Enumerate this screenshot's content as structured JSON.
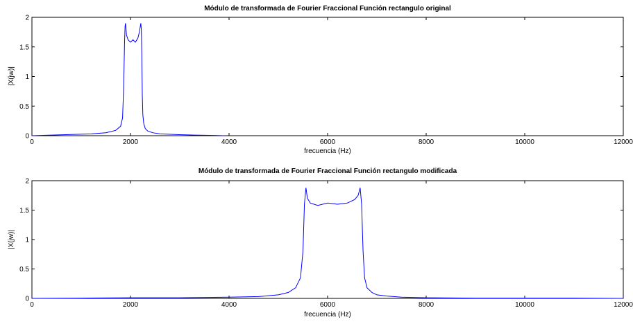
{
  "figure": {
    "background": "#ffffff"
  },
  "chart_data": [
    {
      "type": "line",
      "title": "Módulo de transformada de Fourier Fraccional Función rectangulo original",
      "xlabel": "frecuencia (Hz)",
      "ylabel": "|X(jw)|",
      "xlim": [
        0,
        12000
      ],
      "ylim": [
        0,
        2
      ],
      "xticks": [
        0,
        2000,
        4000,
        6000,
        8000,
        10000,
        12000
      ],
      "xtick_labels": [
        "0",
        "2000",
        "4000",
        "6000",
        "8000",
        "10000",
        "12000"
      ],
      "yticks": [
        0,
        0.5,
        1,
        1.5,
        2
      ],
      "ytick_labels": [
        "0",
        "0.5",
        "1",
        "1.5",
        "2"
      ],
      "grid": false,
      "color": "#0000ff",
      "series": [
        {
          "name": "",
          "x": [
            0,
            400,
            800,
            1200,
            1500,
            1700,
            1800,
            1840,
            1860,
            1880,
            1890,
            1900,
            1920,
            1950,
            2000,
            2050,
            2100,
            2150,
            2180,
            2200,
            2210,
            2220,
            2230,
            2240,
            2250,
            2270,
            2300,
            2350,
            2450,
            2600,
            2900,
            3300,
            3700,
            3900
          ],
          "y": [
            0.0,
            0.01,
            0.02,
            0.03,
            0.05,
            0.09,
            0.16,
            0.3,
            0.8,
            1.6,
            1.85,
            1.9,
            1.7,
            1.62,
            1.58,
            1.62,
            1.58,
            1.65,
            1.75,
            1.85,
            1.9,
            1.8,
            1.4,
            0.7,
            0.35,
            0.2,
            0.12,
            0.08,
            0.05,
            0.03,
            0.02,
            0.01,
            0.005,
            0.0
          ]
        }
      ]
    },
    {
      "type": "line",
      "title": "Módulo de transformada de Fourier Fraccional Función rectangulo modificada",
      "xlabel": "frecuencia (Hz)",
      "ylabel": "|X(jw)|",
      "xlim": [
        0,
        12000
      ],
      "ylim": [
        0,
        2
      ],
      "xticks": [
        0,
        2000,
        4000,
        6000,
        8000,
        10000,
        12000
      ],
      "xtick_labels": [
        "0",
        "2000",
        "4000",
        "6000",
        "8000",
        "10000",
        "12000"
      ],
      "yticks": [
        0,
        0.5,
        1,
        1.5,
        2
      ],
      "ytick_labels": [
        "0",
        "0.5",
        "1",
        "1.5",
        "2"
      ],
      "grid": false,
      "color": "#0000ff",
      "series": [
        {
          "name": "",
          "x": [
            0,
            1000,
            2000,
            3000,
            4000,
            4600,
            5000,
            5200,
            5350,
            5450,
            5500,
            5530,
            5560,
            5590,
            5650,
            5800,
            6000,
            6200,
            6400,
            6550,
            6620,
            6660,
            6690,
            6720,
            6750,
            6800,
            6900,
            7000,
            7200,
            7500,
            8000,
            9000,
            10000,
            11000,
            12000
          ],
          "y": [
            0.0,
            0.005,
            0.01,
            0.01,
            0.02,
            0.03,
            0.06,
            0.1,
            0.18,
            0.35,
            0.8,
            1.6,
            1.88,
            1.7,
            1.62,
            1.58,
            1.62,
            1.6,
            1.62,
            1.68,
            1.75,
            1.88,
            1.6,
            0.8,
            0.35,
            0.18,
            0.1,
            0.06,
            0.04,
            0.02,
            0.01,
            0.005,
            0.005,
            0.005,
            0.0
          ]
        }
      ]
    }
  ]
}
